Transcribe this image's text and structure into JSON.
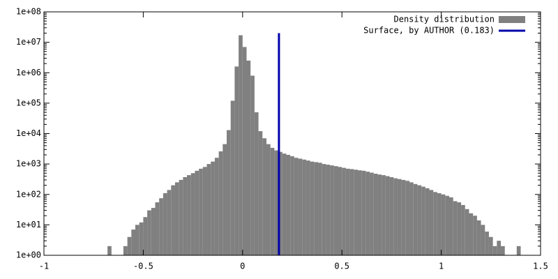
{
  "chart_data": {
    "type": "histogram",
    "bins": [
      -0.7,
      -0.68,
      -0.66,
      -0.64,
      -0.62,
      -0.6,
      -0.58,
      -0.56,
      -0.54,
      -0.52,
      -0.5,
      -0.48,
      -0.46,
      -0.44,
      -0.42,
      -0.4,
      -0.38,
      -0.36,
      -0.34,
      -0.32,
      -0.3,
      -0.28,
      -0.26,
      -0.24,
      -0.22,
      -0.2,
      -0.18,
      -0.16,
      -0.14,
      -0.12,
      -0.1,
      -0.08,
      -0.06,
      -0.04,
      -0.02,
      0.0,
      0.02,
      0.04,
      0.06,
      0.08,
      0.1,
      0.12,
      0.14,
      0.16,
      0.18,
      0.2,
      0.22,
      0.24,
      0.26,
      0.28,
      0.3,
      0.32,
      0.34,
      0.36,
      0.38,
      0.4,
      0.42,
      0.44,
      0.46,
      0.48,
      0.5,
      0.52,
      0.54,
      0.56,
      0.58,
      0.6,
      0.62,
      0.64,
      0.66,
      0.68,
      0.7,
      0.72,
      0.74,
      0.76,
      0.78,
      0.8,
      0.82,
      0.84,
      0.86,
      0.88,
      0.9,
      0.92,
      0.94,
      0.96,
      0.98,
      1.0,
      1.02,
      1.04,
      1.06,
      1.08,
      1.1,
      1.12,
      1.14,
      1.16,
      1.18,
      1.2,
      1.22,
      1.24,
      1.26,
      1.28,
      1.3,
      1.32,
      1.34,
      1.36,
      1.38,
      1.4,
      1.42
    ],
    "series": [
      {
        "name": "Density distribution",
        "color": "#808080",
        "values": [
          0,
          2,
          0,
          0,
          0,
          2,
          4,
          7,
          10,
          12,
          18,
          30,
          36,
          55,
          75,
          110,
          140,
          200,
          250,
          300,
          370,
          430,
          500,
          600,
          700,
          800,
          1000,
          1200,
          1600,
          2600,
          4500,
          13000,
          120000,
          1600000,
          17000000,
          7000000,
          2500000,
          800000,
          50000,
          12000,
          7000,
          4500,
          3400,
          2800,
          2500,
          2200,
          2000,
          1800,
          1600,
          1500,
          1400,
          1300,
          1200,
          1150,
          1100,
          1000,
          950,
          900,
          850,
          800,
          750,
          700,
          680,
          650,
          620,
          600,
          560,
          520,
          480,
          450,
          430,
          400,
          370,
          340,
          320,
          300,
          280,
          250,
          220,
          200,
          180,
          160,
          140,
          120,
          110,
          100,
          90,
          80,
          60,
          55,
          45,
          33,
          24,
          20,
          14,
          10,
          6,
          4,
          2,
          3,
          2,
          0,
          0,
          0,
          2,
          0
        ]
      }
    ],
    "line": {
      "name": "Surface, by AUTHOR (0.183)",
      "color": "#0000aa",
      "x": [
        0.183,
        0.183
      ],
      "y": [
        1,
        20000000
      ]
    },
    "xlim": [
      -1,
      1.5
    ],
    "xticks": [
      -1,
      -0.5,
      0,
      0.5,
      1,
      1.5
    ],
    "ylim": [
      1,
      100000000
    ],
    "log_y": true,
    "yticks": [
      {
        "value": 1,
        "label": "1e+00"
      },
      {
        "value": 10,
        "label": "1e+01"
      },
      {
        "value": 100,
        "label": "1e+02"
      },
      {
        "value": 1000,
        "label": "1e+03"
      },
      {
        "value": 10000,
        "label": "1e+04"
      },
      {
        "value": 100000,
        "label": "1e+05"
      },
      {
        "value": 1000000,
        "label": "1e+06"
      },
      {
        "value": 10000000,
        "label": "1e+07"
      },
      {
        "value": 100000000,
        "label": "1e+08"
      }
    ],
    "legend": "top-right"
  }
}
